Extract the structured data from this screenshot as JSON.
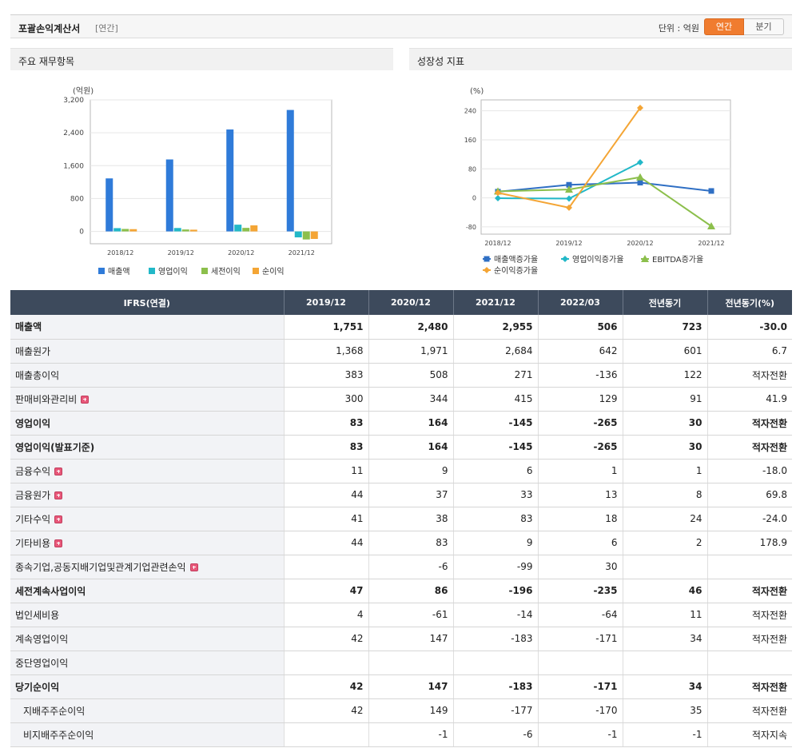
{
  "header": {
    "title": "포괄손익계산서",
    "period": "[연간]",
    "unit": "단위 : 억원",
    "toggle_annual": "연간",
    "toggle_quarter": "분기"
  },
  "panels": {
    "left_title": "주요 재무항목",
    "right_title": "성장성 지표"
  },
  "colors": {
    "revenue": "#2f7bd9",
    "op_income": "#22b8c8",
    "pretax": "#8cbf4c",
    "net": "#f4a535"
  },
  "chart_data": [
    {
      "type": "bar",
      "ylabel": "(억원)",
      "categories": [
        "2018/12",
        "2019/12",
        "2020/12",
        "2021/12"
      ],
      "ylim": [
        -300,
        3200
      ],
      "yticks": [
        0,
        800,
        1600,
        2400,
        3200
      ],
      "ytick_labels": [
        "0",
        "800",
        "1,600",
        "2,400",
        "3,200"
      ],
      "grid": true,
      "legend": "bottom",
      "series": [
        {
          "name": "매출액",
          "values": [
            1290,
            1751,
            2480,
            2955
          ]
        },
        {
          "name": "영업이익",
          "values": [
            80,
            83,
            164,
            -145
          ]
        },
        {
          "name": "세전이익",
          "values": [
            60,
            47,
            86,
            -196
          ]
        },
        {
          "name": "순이익",
          "values": [
            55,
            42,
            147,
            -183
          ]
        }
      ]
    },
    {
      "type": "line",
      "ylabel": "(%)",
      "categories": [
        "2018/12",
        "2019/12",
        "2020/12",
        "2021/12"
      ],
      "ylim": [
        -100,
        270
      ],
      "yticks": [
        -80,
        0,
        80,
        160,
        240
      ],
      "ytick_labels": [
        "-80",
        "0",
        "80",
        "160",
        "240"
      ],
      "grid": true,
      "legend": "bottom",
      "series": [
        {
          "name": "매출액증가율",
          "values": [
            17,
            36,
            42,
            19
          ]
        },
        {
          "name": "영업이익증가율",
          "values": [
            -1,
            -2,
            98,
            null
          ]
        },
        {
          "name": "EBITDA증가율",
          "values": [
            18,
            23,
            57,
            -78
          ]
        },
        {
          "name": "순이익증가율",
          "values": [
            14,
            -27,
            248,
            null
          ]
        }
      ]
    }
  ],
  "table": {
    "headers": [
      "IFRS(연결)",
      "2019/12",
      "2020/12",
      "2021/12",
      "2022/03",
      "전년동기",
      "전년동기(%)"
    ],
    "rows": [
      {
        "label": "매출액",
        "values": [
          "1,751",
          "2,480",
          "2,955",
          "506",
          "723",
          "-30.0"
        ],
        "bold": true,
        "plus": false,
        "sub": false
      },
      {
        "label": "매출원가",
        "values": [
          "1,368",
          "1,971",
          "2,684",
          "642",
          "601",
          "6.7"
        ],
        "bold": false,
        "plus": false,
        "sub": false
      },
      {
        "label": "매출총이익",
        "values": [
          "383",
          "508",
          "271",
          "-136",
          "122",
          "적자전환"
        ],
        "bold": false,
        "plus": false,
        "sub": false
      },
      {
        "label": "판매비와관리비",
        "values": [
          "300",
          "344",
          "415",
          "129",
          "91",
          "41.9"
        ],
        "bold": false,
        "plus": true,
        "sub": false
      },
      {
        "label": "영업이익",
        "values": [
          "83",
          "164",
          "-145",
          "-265",
          "30",
          "적자전환"
        ],
        "bold": true,
        "plus": false,
        "sub": false
      },
      {
        "label": "영업이익(발표기준)",
        "values": [
          "83",
          "164",
          "-145",
          "-265",
          "30",
          "적자전환"
        ],
        "bold": true,
        "plus": false,
        "sub": false
      },
      {
        "label": "금융수익",
        "values": [
          "11",
          "9",
          "6",
          "1",
          "1",
          "-18.0"
        ],
        "bold": false,
        "plus": true,
        "sub": false
      },
      {
        "label": "금융원가",
        "values": [
          "44",
          "37",
          "33",
          "13",
          "8",
          "69.8"
        ],
        "bold": false,
        "plus": true,
        "sub": false
      },
      {
        "label": "기타수익",
        "values": [
          "41",
          "38",
          "83",
          "18",
          "24",
          "-24.0"
        ],
        "bold": false,
        "plus": true,
        "sub": false
      },
      {
        "label": "기타비용",
        "values": [
          "44",
          "83",
          "9",
          "6",
          "2",
          "178.9"
        ],
        "bold": false,
        "plus": true,
        "sub": false
      },
      {
        "label": "종속기업,공동지배기업및관계기업관련손익",
        "values": [
          "",
          "-6",
          "-99",
          "30",
          "",
          ""
        ],
        "bold": false,
        "plus": true,
        "sub": false
      },
      {
        "label": "세전계속사업이익",
        "values": [
          "47",
          "86",
          "-196",
          "-235",
          "46",
          "적자전환"
        ],
        "bold": true,
        "plus": false,
        "sub": false
      },
      {
        "label": "법인세비용",
        "values": [
          "4",
          "-61",
          "-14",
          "-64",
          "11",
          "적자전환"
        ],
        "bold": false,
        "plus": false,
        "sub": false
      },
      {
        "label": "계속영업이익",
        "values": [
          "42",
          "147",
          "-183",
          "-171",
          "34",
          "적자전환"
        ],
        "bold": false,
        "plus": false,
        "sub": false
      },
      {
        "label": "중단영업이익",
        "values": [
          "",
          "",
          "",
          "",
          "",
          ""
        ],
        "bold": false,
        "plus": false,
        "sub": false
      },
      {
        "label": "당기순이익",
        "values": [
          "42",
          "147",
          "-183",
          "-171",
          "34",
          "적자전환"
        ],
        "bold": true,
        "plus": false,
        "sub": false
      },
      {
        "label": "지배주주순이익",
        "values": [
          "42",
          "149",
          "-177",
          "-170",
          "35",
          "적자전환"
        ],
        "bold": false,
        "plus": false,
        "sub": true
      },
      {
        "label": "비지배주주순이익",
        "values": [
          "",
          "-1",
          "-6",
          "-1",
          "-1",
          "적자지속"
        ],
        "bold": false,
        "plus": false,
        "sub": true
      }
    ]
  }
}
